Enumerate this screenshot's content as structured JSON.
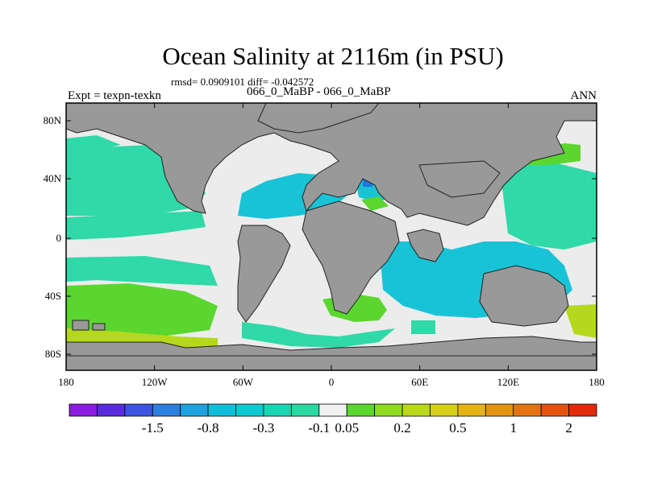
{
  "title": "Ocean Salinity at 2116m (in PSU)",
  "stats": "rmsd= 0.0909101 diff= -0.042572",
  "subtitle": "066_0_MaBP - 066_0_MaBP",
  "left_label": "Expt = texpn-texkn",
  "right_label": "ANN",
  "x_ticks": [
    "180",
    "120W",
    "60W",
    "0",
    "60E",
    "120E",
    "180"
  ],
  "y_ticks": [
    "80N",
    "40N",
    "0",
    "40S",
    "80S"
  ],
  "colorbar": {
    "colors": [
      "#8a1be0",
      "#5a2bdc",
      "#3b55e0",
      "#2b7fe0",
      "#1fa2df",
      "#10bedb",
      "#0ccad0",
      "#19d6b3",
      "#2ad9a0",
      "#f0f0f0",
      "#5ad62e",
      "#8fdb20",
      "#b9d81c",
      "#d8cf1a",
      "#e5b414",
      "#e59412",
      "#e47410",
      "#e4520e",
      "#e22a0a"
    ],
    "labels": [
      "-1.5",
      "-0.8",
      "-0.3",
      "-0.1",
      "0.05",
      "0.2",
      "0.5",
      "1",
      "2"
    ],
    "label_positions": [
      3,
      5,
      7,
      9,
      10,
      12,
      14,
      16,
      18
    ]
  },
  "map_colors": {
    "land": "#999999",
    "ocean_neutral": "#ececec",
    "teal": "#2fd9a8",
    "cyan": "#18c3d6",
    "blue": "#1e78d8",
    "green": "#5ad62e",
    "yellowgreen": "#b5d81c"
  }
}
